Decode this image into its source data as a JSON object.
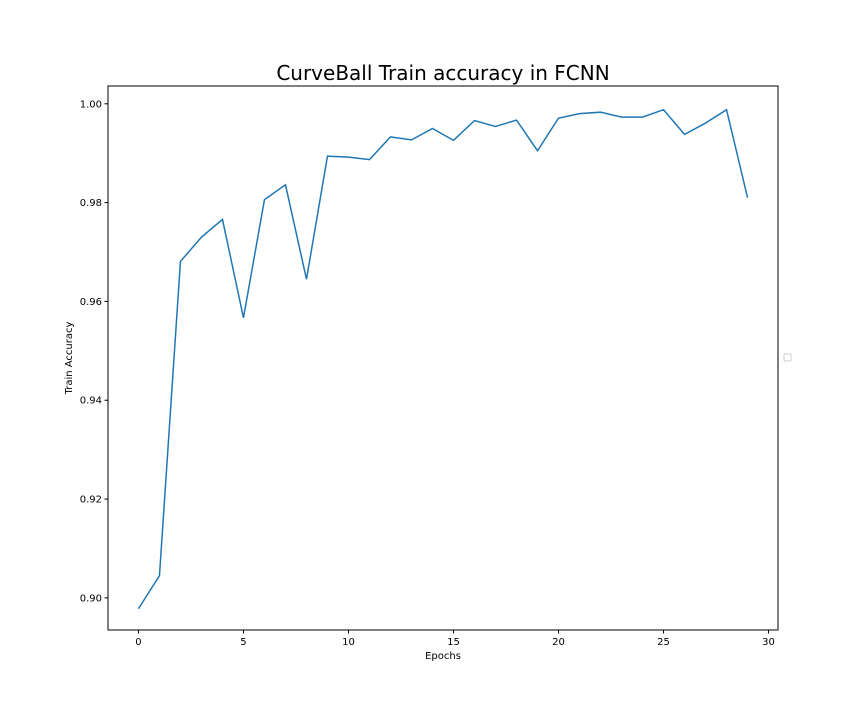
{
  "chart_data": {
    "type": "line",
    "title": "CurveBall Train accuracy in FCNN",
    "xlabel": "Epochs",
    "ylabel": "Train Accuracy",
    "xlim": [
      -1.45,
      30.45
    ],
    "ylim": [
      0.8935,
      1.0036
    ],
    "x_ticks": [
      0,
      5,
      10,
      15,
      20,
      25,
      30
    ],
    "y_ticks": [
      0.9,
      0.92,
      0.94,
      0.96,
      0.98,
      1.0
    ],
    "y_tick_labels": [
      "0.90",
      "0.92",
      "0.94",
      "0.96",
      "0.98",
      "1.00"
    ],
    "grid": false,
    "legend": "center-right (empty)",
    "series": [
      {
        "color": "#1f77b4",
        "x": [
          0,
          1,
          2,
          3,
          4,
          5,
          6,
          7,
          8,
          9,
          10,
          11,
          12,
          13,
          14,
          15,
          16,
          17,
          18,
          19,
          20,
          21,
          22,
          23,
          24,
          25,
          26,
          27,
          28,
          29
        ],
        "y": [
          0.8978,
          0.9045,
          0.9681,
          0.973,
          0.9766,
          0.9567,
          0.9806,
          0.9836,
          0.9645,
          0.9894,
          0.9892,
          0.9887,
          0.9933,
          0.9927,
          0.995,
          0.9926,
          0.9966,
          0.9954,
          0.9967,
          0.9905,
          0.9971,
          0.998,
          0.9983,
          0.9973,
          0.9973,
          0.9988,
          0.9938,
          0.9961,
          0.9988,
          0.981
        ]
      }
    ]
  }
}
